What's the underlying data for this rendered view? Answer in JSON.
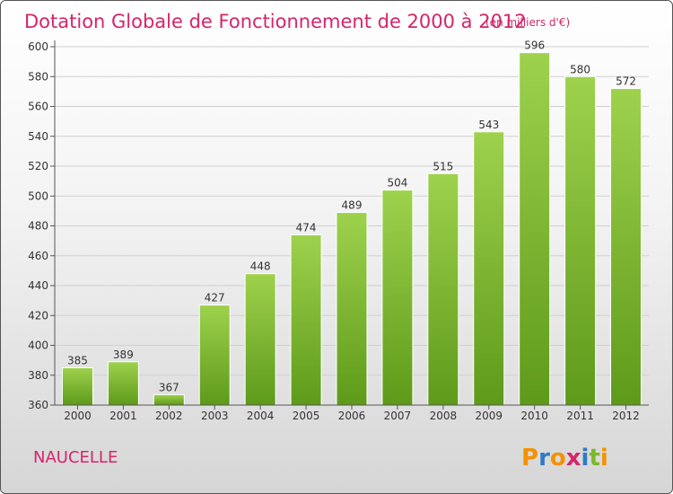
{
  "chart_data": {
    "type": "bar",
    "title": "Dotation Globale de Fonctionnement de 2000 à 2012",
    "subtitle": "(en milliers d'€)",
    "categories": [
      "2000",
      "2001",
      "2002",
      "2003",
      "2004",
      "2005",
      "2006",
      "2007",
      "2008",
      "2009",
      "2010",
      "2011",
      "2012"
    ],
    "values": [
      385,
      389,
      367,
      427,
      448,
      474,
      489,
      504,
      515,
      543,
      596,
      580,
      572
    ],
    "ylim": [
      360,
      600
    ],
    "yticks": [
      360,
      380,
      400,
      420,
      440,
      460,
      480,
      500,
      520,
      540,
      560,
      580,
      600
    ],
    "grid": true,
    "legend": "none",
    "bar_color_top": "#9ed24d",
    "bar_color_bottom": "#5e9a1a"
  },
  "commune": "NAUCELLE",
  "logo": {
    "letters": [
      "P",
      "r",
      "o",
      "x",
      "i",
      "t",
      "i"
    ],
    "colors": [
      "#f39200",
      "#2e7bc4",
      "#f39200",
      "#d6256a",
      "#2e7bc4",
      "#7ab929",
      "#f39200"
    ]
  },
  "colors": {
    "accent": "#d6256a"
  }
}
